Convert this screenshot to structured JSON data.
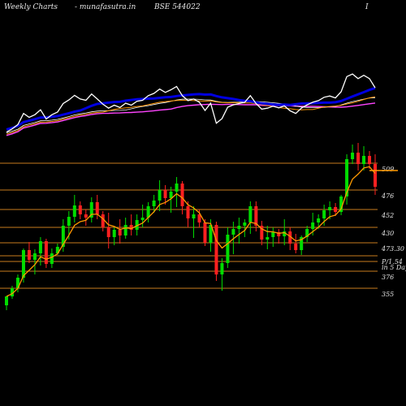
{
  "header": {
    "left": "Weekly Charts",
    "center": "- munafasutra.in",
    "right": "BSE 544022",
    "far_right": "I"
  },
  "colors": {
    "background": "#000000",
    "up": "#00dd00",
    "down": "#ff2020",
    "level_line": "#c87d1e",
    "ema_short": "#ff9900",
    "price_line": "#ffffff",
    "indicator_ma": "#0000e0",
    "indicator_pink": "#ff44ff"
  },
  "chart_data": {
    "type": "candlestick",
    "x_axis": "weeks",
    "y_axis": "price",
    "price_range": [
      300,
      560
    ],
    "levels": [
      {
        "label": "509",
        "value": 509
      },
      {
        "label": "476",
        "value": 476
      },
      {
        "label": "452",
        "value": 452
      },
      {
        "label": "430",
        "value": 430
      },
      {
        "label": "473.30",
        "value": 411
      },
      {
        "label": "P/1.54",
        "value": 395
      },
      {
        "label": "in 5 Days",
        "value": 388
      },
      {
        "label": "376",
        "value": 376
      },
      {
        "label": "355",
        "value": 355
      }
    ],
    "current_price_marker": 500,
    "candles": [
      {
        "o": 334,
        "h": 345,
        "l": 328,
        "c": 345
      },
      {
        "o": 345,
        "h": 358,
        "l": 342,
        "c": 355
      },
      {
        "o": 355,
        "h": 372,
        "l": 350,
        "c": 368
      },
      {
        "o": 368,
        "h": 404,
        "l": 362,
        "c": 402
      },
      {
        "o": 402,
        "h": 412,
        "l": 386,
        "c": 390
      },
      {
        "o": 390,
        "h": 403,
        "l": 372,
        "c": 398
      },
      {
        "o": 398,
        "h": 418,
        "l": 383,
        "c": 413
      },
      {
        "o": 413,
        "h": 416,
        "l": 380,
        "c": 385
      },
      {
        "o": 385,
        "h": 404,
        "l": 380,
        "c": 398
      },
      {
        "o": 398,
        "h": 410,
        "l": 396,
        "c": 406
      },
      {
        "o": 406,
        "h": 440,
        "l": 400,
        "c": 432
      },
      {
        "o": 432,
        "h": 450,
        "l": 415,
        "c": 443
      },
      {
        "o": 443,
        "h": 470,
        "l": 436,
        "c": 457
      },
      {
        "o": 457,
        "h": 462,
        "l": 440,
        "c": 446
      },
      {
        "o": 446,
        "h": 452,
        "l": 432,
        "c": 442
      },
      {
        "o": 442,
        "h": 467,
        "l": 436,
        "c": 461
      },
      {
        "o": 461,
        "h": 470,
        "l": 440,
        "c": 446
      },
      {
        "o": 446,
        "h": 450,
        "l": 425,
        "c": 430
      },
      {
        "o": 430,
        "h": 448,
        "l": 404,
        "c": 418
      },
      {
        "o": 418,
        "h": 430,
        "l": 408,
        "c": 427
      },
      {
        "o": 427,
        "h": 440,
        "l": 410,
        "c": 420
      },
      {
        "o": 420,
        "h": 442,
        "l": 416,
        "c": 433
      },
      {
        "o": 433,
        "h": 446,
        "l": 420,
        "c": 427
      },
      {
        "o": 427,
        "h": 446,
        "l": 420,
        "c": 439
      },
      {
        "o": 439,
        "h": 458,
        "l": 430,
        "c": 442
      },
      {
        "o": 442,
        "h": 461,
        "l": 436,
        "c": 456
      },
      {
        "o": 456,
        "h": 470,
        "l": 448,
        "c": 463
      },
      {
        "o": 463,
        "h": 488,
        "l": 450,
        "c": 476
      },
      {
        "o": 476,
        "h": 482,
        "l": 458,
        "c": 466
      },
      {
        "o": 466,
        "h": 480,
        "l": 448,
        "c": 474
      },
      {
        "o": 474,
        "h": 492,
        "l": 455,
        "c": 484
      },
      {
        "o": 484,
        "h": 487,
        "l": 446,
        "c": 456
      },
      {
        "o": 456,
        "h": 462,
        "l": 430,
        "c": 441
      },
      {
        "o": 441,
        "h": 456,
        "l": 417,
        "c": 446
      },
      {
        "o": 446,
        "h": 452,
        "l": 430,
        "c": 436
      },
      {
        "o": 436,
        "h": 440,
        "l": 407,
        "c": 411
      },
      {
        "o": 411,
        "h": 440,
        "l": 400,
        "c": 433
      },
      {
        "o": 433,
        "h": 437,
        "l": 364,
        "c": 372
      },
      {
        "o": 372,
        "h": 392,
        "l": 352,
        "c": 386
      },
      {
        "o": 386,
        "h": 430,
        "l": 380,
        "c": 421
      },
      {
        "o": 421,
        "h": 437,
        "l": 397,
        "c": 428
      },
      {
        "o": 428,
        "h": 442,
        "l": 410,
        "c": 432
      },
      {
        "o": 432,
        "h": 440,
        "l": 418,
        "c": 436
      },
      {
        "o": 436,
        "h": 462,
        "l": 422,
        "c": 456
      },
      {
        "o": 456,
        "h": 462,
        "l": 425,
        "c": 432
      },
      {
        "o": 432,
        "h": 438,
        "l": 408,
        "c": 415
      },
      {
        "o": 415,
        "h": 432,
        "l": 403,
        "c": 418
      },
      {
        "o": 418,
        "h": 430,
        "l": 406,
        "c": 424
      },
      {
        "o": 424,
        "h": 428,
        "l": 410,
        "c": 419
      },
      {
        "o": 419,
        "h": 440,
        "l": 408,
        "c": 425
      },
      {
        "o": 425,
        "h": 430,
        "l": 402,
        "c": 410
      },
      {
        "o": 410,
        "h": 422,
        "l": 398,
        "c": 402
      },
      {
        "o": 402,
        "h": 420,
        "l": 396,
        "c": 418
      },
      {
        "o": 418,
        "h": 432,
        "l": 412,
        "c": 428
      },
      {
        "o": 428,
        "h": 448,
        "l": 420,
        "c": 436
      },
      {
        "o": 436,
        "h": 446,
        "l": 428,
        "c": 441
      },
      {
        "o": 441,
        "h": 458,
        "l": 432,
        "c": 451
      },
      {
        "o": 451,
        "h": 462,
        "l": 440,
        "c": 455
      },
      {
        "o": 455,
        "h": 460,
        "l": 444,
        "c": 449
      },
      {
        "o": 449,
        "h": 470,
        "l": 445,
        "c": 468
      },
      {
        "o": 468,
        "h": 520,
        "l": 458,
        "c": 514
      },
      {
        "o": 514,
        "h": 532,
        "l": 508,
        "c": 522
      },
      {
        "o": 522,
        "h": 534,
        "l": 500,
        "c": 508
      },
      {
        "o": 508,
        "h": 530,
        "l": 500,
        "c": 518
      },
      {
        "o": 518,
        "h": 524,
        "l": 502,
        "c": 508
      },
      {
        "o": 508,
        "h": 520,
        "l": 470,
        "c": 480
      }
    ]
  }
}
